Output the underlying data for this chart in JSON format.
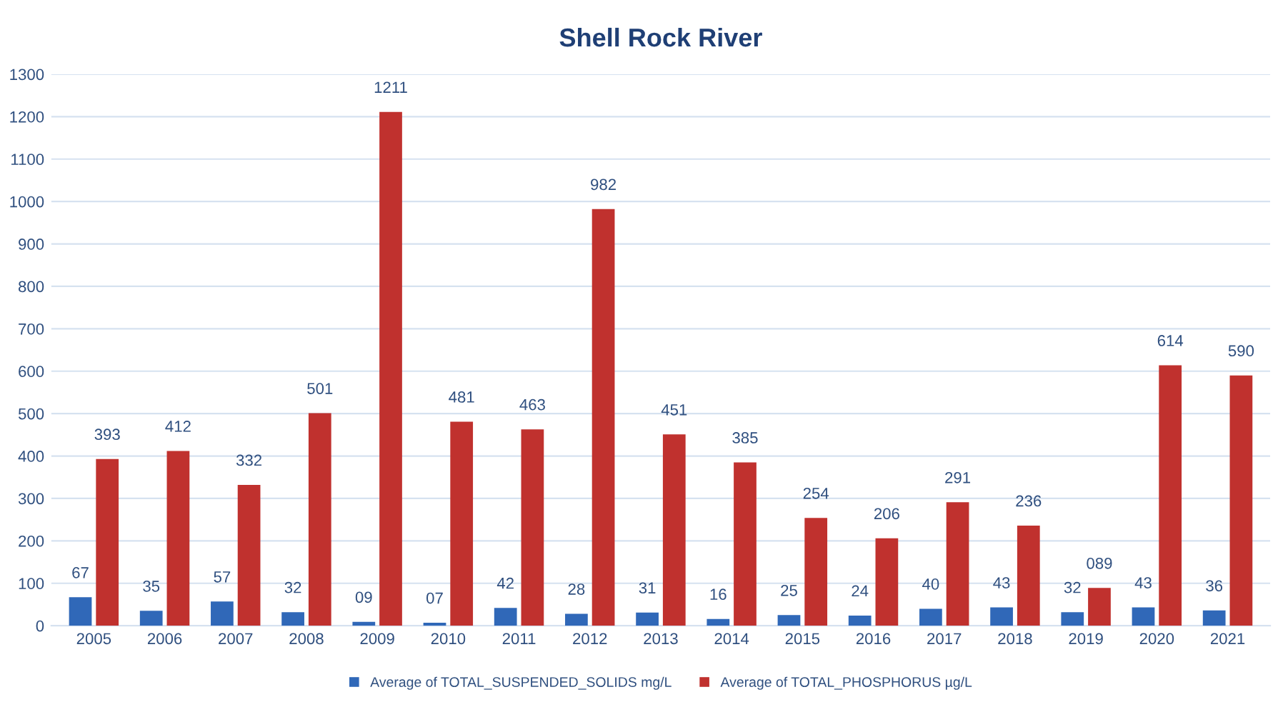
{
  "chart_data": {
    "type": "bar",
    "title": "Shell Rock River",
    "categories": [
      "2005",
      "2006",
      "2007",
      "2008",
      "2009",
      "2010",
      "2011",
      "2012",
      "2013",
      "2014",
      "2015",
      "2016",
      "2017",
      "2018",
      "2019",
      "2020",
      "2021"
    ],
    "series": [
      {
        "name": "Average of TOTAL_SUSPENDED_SOLIDS mg/L",
        "color": "#3068b8",
        "values": [
          67,
          35,
          57,
          32,
          9,
          7,
          42,
          28,
          31,
          16,
          25,
          24,
          40,
          43,
          32,
          43,
          36
        ],
        "value_labels": [
          "67",
          "35",
          "57",
          "32",
          "09",
          "07",
          "42",
          "28",
          "31",
          "16",
          "25",
          "24",
          "40",
          "43",
          "32",
          "43",
          "36"
        ]
      },
      {
        "name": "Average of TOTAL_PHOSPHORUS µg/L",
        "color": "#c0312e",
        "values": [
          393,
          412,
          332,
          501,
          1211,
          481,
          463,
          982,
          451,
          385,
          254,
          206,
          291,
          236,
          89,
          614,
          590
        ],
        "value_labels": [
          "393",
          "412",
          "332",
          "501",
          "1211",
          "481",
          "463",
          "982",
          "451",
          "385",
          "254",
          "206",
          "291",
          "236",
          "089",
          "614",
          "590"
        ]
      }
    ],
    "ylim": [
      0,
      1300
    ],
    "yticks": [
      0,
      100,
      200,
      300,
      400,
      500,
      600,
      700,
      800,
      900,
      1000,
      1100,
      1200,
      1300
    ],
    "grid": "y",
    "legend": "bottom"
  }
}
